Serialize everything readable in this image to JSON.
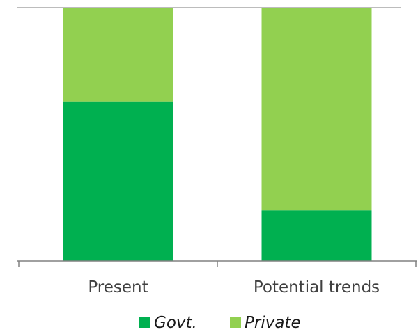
{
  "chart_data": {
    "type": "bar",
    "stacked": true,
    "percent_stacked": true,
    "categories": [
      "Present",
      "Potential trends"
    ],
    "series": [
      {
        "name": "Govt.",
        "values": [
          63,
          20
        ],
        "color": "#00b050"
      },
      {
        "name": "Private",
        "values": [
          37,
          80
        ],
        "color": "#92d050"
      }
    ],
    "ylim": [
      0,
      100
    ],
    "grid": false,
    "legend": "bottom",
    "title": "",
    "xlabel": "",
    "ylabel": ""
  }
}
